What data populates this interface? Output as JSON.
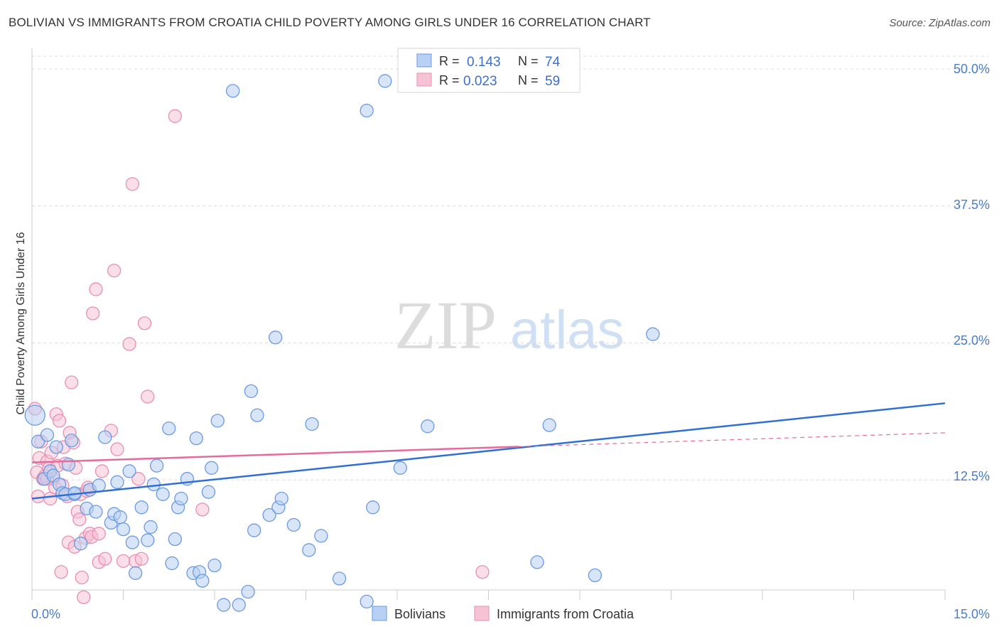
{
  "title": "BOLIVIAN VS IMMIGRANTS FROM CROATIA CHILD POVERTY AMONG GIRLS UNDER 16 CORRELATION CHART",
  "source": "Source: ZipAtlas.com",
  "watermark": {
    "zip": "ZIP",
    "atlas": "atlas"
  },
  "colors": {
    "blue": "#4a86d8",
    "blue_fill": "#b8d0f3",
    "pink": "#e66b9b",
    "pink_fill": "#f6c3d5",
    "axis_text": "#4a7cc7",
    "grid": "#dddddd"
  },
  "legend": {
    "r_label": "R =",
    "n_label": "N =",
    "series": [
      {
        "name": "Bolivians",
        "r": "0.143",
        "n": "74"
      },
      {
        "name": "Immigrants from Croatia",
        "r": "0.023",
        "n": "59"
      }
    ]
  },
  "chart_data": {
    "type": "scatter",
    "title": "BOLIVIAN VS IMMIGRANTS FROM CROATIA CHILD POVERTY AMONG GIRLS UNDER 16 CORRELATION CHART",
    "xlabel": "",
    "ylabel": "Child Poverty Among Girls Under 16",
    "xlim": [
      0,
      15
    ],
    "ylim": [
      0,
      52
    ],
    "x_tick_labels": [
      "0.0%",
      "15.0%"
    ],
    "y_ticks": [
      12.5,
      25.0,
      37.5,
      50.0
    ],
    "y_tick_labels": [
      "12.5%",
      "25.0%",
      "37.5%",
      "50.0%"
    ],
    "grid": true,
    "series": [
      {
        "name": "Bolivians",
        "color": "#4a86d8",
        "trend": {
          "x": [
            0,
            15
          ],
          "y": [
            10.8,
            19.5
          ],
          "dashed_from": null
        },
        "points": [
          [
            0.05,
            18.4
          ],
          [
            0.1,
            16.0
          ],
          [
            0.2,
            12.6
          ],
          [
            0.25,
            16.6
          ],
          [
            0.3,
            13.3
          ],
          [
            0.35,
            12.9
          ],
          [
            0.4,
            15.5
          ],
          [
            0.45,
            12.1
          ],
          [
            0.5,
            11.3
          ],
          [
            0.55,
            11.2
          ],
          [
            0.6,
            13.9
          ],
          [
            0.65,
            16.1
          ],
          [
            0.7,
            11.2
          ],
          [
            0.8,
            6.7
          ],
          [
            0.9,
            9.9
          ],
          [
            0.95,
            11.6
          ],
          [
            1.05,
            9.6
          ],
          [
            1.1,
            12.0
          ],
          [
            1.2,
            16.4
          ],
          [
            1.3,
            8.6
          ],
          [
            1.35,
            9.4
          ],
          [
            1.4,
            12.3
          ],
          [
            1.45,
            9.1
          ],
          [
            1.5,
            8.0
          ],
          [
            1.6,
            13.3
          ],
          [
            1.65,
            6.8
          ],
          [
            1.7,
            4.0
          ],
          [
            1.8,
            10.0
          ],
          [
            1.9,
            7.0
          ],
          [
            1.95,
            8.2
          ],
          [
            2.0,
            12.1
          ],
          [
            2.05,
            13.8
          ],
          [
            2.15,
            11.2
          ],
          [
            2.25,
            17.2
          ],
          [
            2.3,
            4.9
          ],
          [
            2.35,
            7.1
          ],
          [
            2.4,
            10.0
          ],
          [
            2.45,
            10.8
          ],
          [
            2.55,
            12.6
          ],
          [
            2.65,
            4.0
          ],
          [
            2.7,
            16.3
          ],
          [
            2.75,
            4.1
          ],
          [
            2.8,
            3.3
          ],
          [
            2.9,
            11.4
          ],
          [
            2.95,
            13.6
          ],
          [
            3.0,
            4.7
          ],
          [
            3.05,
            17.9
          ],
          [
            3.15,
            1.1
          ],
          [
            3.3,
            48.0
          ],
          [
            3.4,
            1.1
          ],
          [
            3.55,
            2.3
          ],
          [
            3.6,
            20.6
          ],
          [
            3.65,
            7.9
          ],
          [
            3.7,
            18.4
          ],
          [
            3.9,
            9.3
          ],
          [
            4.0,
            25.5
          ],
          [
            4.05,
            10.0
          ],
          [
            4.1,
            10.8
          ],
          [
            4.3,
            8.4
          ],
          [
            4.55,
            6.1
          ],
          [
            4.6,
            17.6
          ],
          [
            4.75,
            7.4
          ],
          [
            5.05,
            3.5
          ],
          [
            5.5,
            46.2
          ],
          [
            5.5,
            1.4
          ],
          [
            5.6,
            10.0
          ],
          [
            5.8,
            48.9
          ],
          [
            6.05,
            13.6
          ],
          [
            6.5,
            17.4
          ],
          [
            8.3,
            5.0
          ],
          [
            8.5,
            17.5
          ],
          [
            9.25,
            3.8
          ],
          [
            10.2,
            25.8
          ],
          [
            0.7,
            11.3
          ]
        ]
      },
      {
        "name": "Immigrants from Croatia",
        "color": "#e66b9b",
        "trend": {
          "x": [
            0,
            15
          ],
          "y": [
            14.1,
            16.8
          ],
          "dashed_from": 8.0
        },
        "points": [
          [
            0.05,
            19.0
          ],
          [
            0.08,
            13.2
          ],
          [
            0.1,
            11.0
          ],
          [
            0.12,
            14.5
          ],
          [
            0.15,
            16.0
          ],
          [
            0.18,
            12.6
          ],
          [
            0.2,
            12.6
          ],
          [
            0.22,
            12.9
          ],
          [
            0.25,
            14.2
          ],
          [
            0.28,
            13.6
          ],
          [
            0.3,
            10.8
          ],
          [
            0.32,
            15.0
          ],
          [
            0.35,
            12.6
          ],
          [
            0.38,
            11.8
          ],
          [
            0.4,
            18.5
          ],
          [
            0.42,
            13.8
          ],
          [
            0.45,
            17.9
          ],
          [
            0.48,
            4.1
          ],
          [
            0.5,
            12.0
          ],
          [
            0.52,
            15.5
          ],
          [
            0.55,
            14.0
          ],
          [
            0.58,
            11.0
          ],
          [
            0.6,
            6.8
          ],
          [
            0.62,
            16.8
          ],
          [
            0.65,
            21.4
          ],
          [
            0.68,
            15.9
          ],
          [
            0.7,
            6.4
          ],
          [
            0.72,
            13.6
          ],
          [
            0.75,
            9.6
          ],
          [
            0.78,
            8.9
          ],
          [
            0.8,
            11.2
          ],
          [
            0.82,
            3.6
          ],
          [
            0.85,
            1.8
          ],
          [
            0.88,
            7.2
          ],
          [
            0.9,
            11.5
          ],
          [
            0.92,
            11.8
          ],
          [
            0.95,
            7.6
          ],
          [
            0.98,
            7.3
          ],
          [
            1.0,
            27.7
          ],
          [
            1.05,
            29.9
          ],
          [
            1.1,
            5.0
          ],
          [
            1.15,
            13.3
          ],
          [
            1.2,
            5.3
          ],
          [
            1.3,
            17.0
          ],
          [
            1.35,
            31.6
          ],
          [
            1.4,
            15.3
          ],
          [
            1.5,
            5.1
          ],
          [
            1.6,
            24.9
          ],
          [
            1.7,
            5.1
          ],
          [
            1.75,
            12.6
          ],
          [
            1.65,
            39.5
          ],
          [
            1.8,
            5.3
          ],
          [
            1.85,
            26.8
          ],
          [
            1.9,
            20.1
          ],
          [
            2.35,
            45.7
          ],
          [
            2.8,
            9.8
          ],
          [
            7.4,
            4.1
          ],
          [
            0.25,
            12.6
          ],
          [
            1.1,
            7.6
          ]
        ]
      }
    ]
  }
}
